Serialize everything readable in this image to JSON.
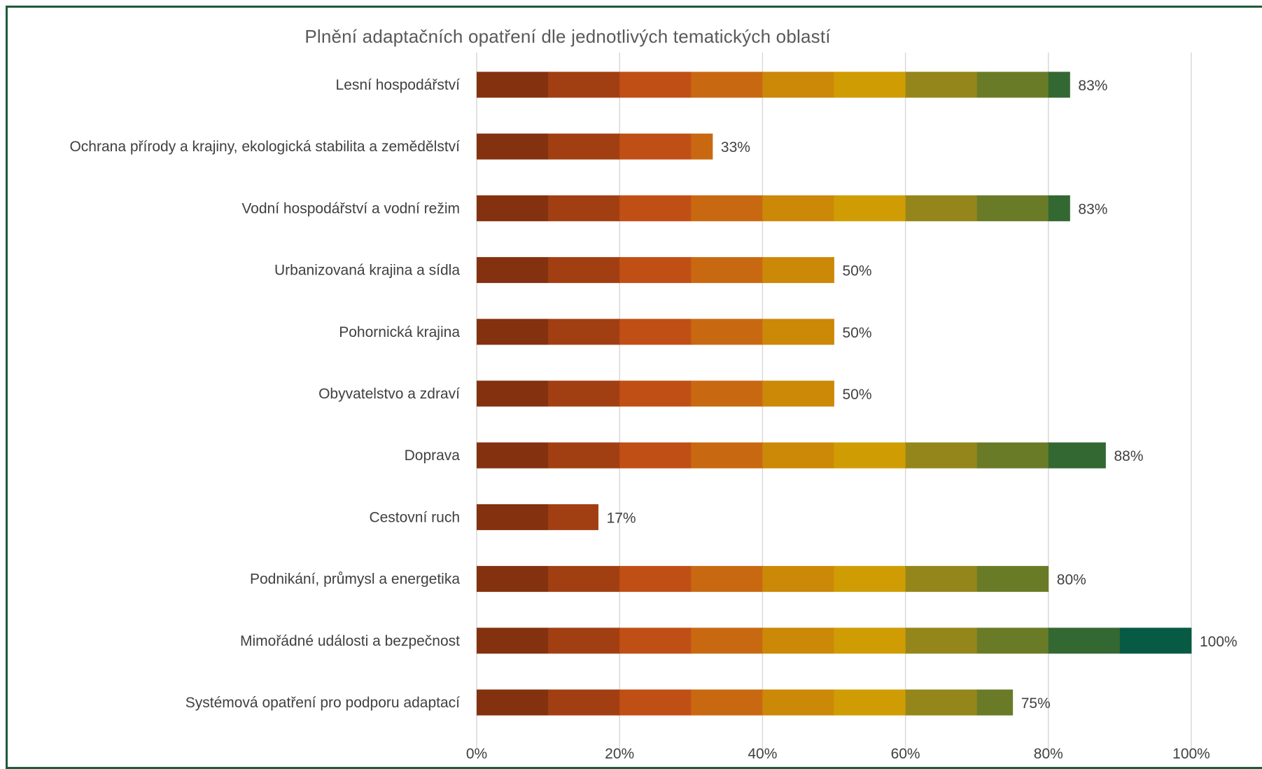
{
  "chart_data": {
    "type": "bar",
    "orientation": "horizontal",
    "stacked": true,
    "title": "Plnění adaptačních opatření dle jednotlivých tematických oblastí",
    "xlabel": "",
    "ylabel": "",
    "xlim": [
      0,
      100
    ],
    "x_ticks": [
      "0%",
      "20%",
      "40%",
      "60%",
      "80%",
      "100%"
    ],
    "grid": "vertical",
    "legend": "none",
    "segment_step": 10,
    "segment_colors": [
      "#84310f",
      "#a23f12",
      "#c04f16",
      "#c86912",
      "#cc8807",
      "#cf9d03",
      "#94861a",
      "#6a7b27",
      "#336832",
      "#075a43"
    ],
    "categories": [
      "Lesní hospodářství",
      "Ochrana přírody a krajiny, ekologická stabilita a zemědělství",
      "Vodní hospodářství a vodní režim",
      "Urbanizovaná krajina a sídla",
      "Pohornická krajina",
      "Obyvatelstvo a zdraví",
      "Doprava",
      "Cestovní ruch",
      "Podnikání, průmysl a energetika",
      "Mimořádné události a bezpečnost",
      "Systémová opatření pro podporu adaptací"
    ],
    "values": [
      83,
      33,
      83,
      50,
      50,
      50,
      88,
      17,
      80,
      100,
      75
    ],
    "data_labels": [
      "83%",
      "33%",
      "83%",
      "50%",
      "50%",
      "50%",
      "88%",
      "17%",
      "80%",
      "100%",
      "75%"
    ]
  }
}
